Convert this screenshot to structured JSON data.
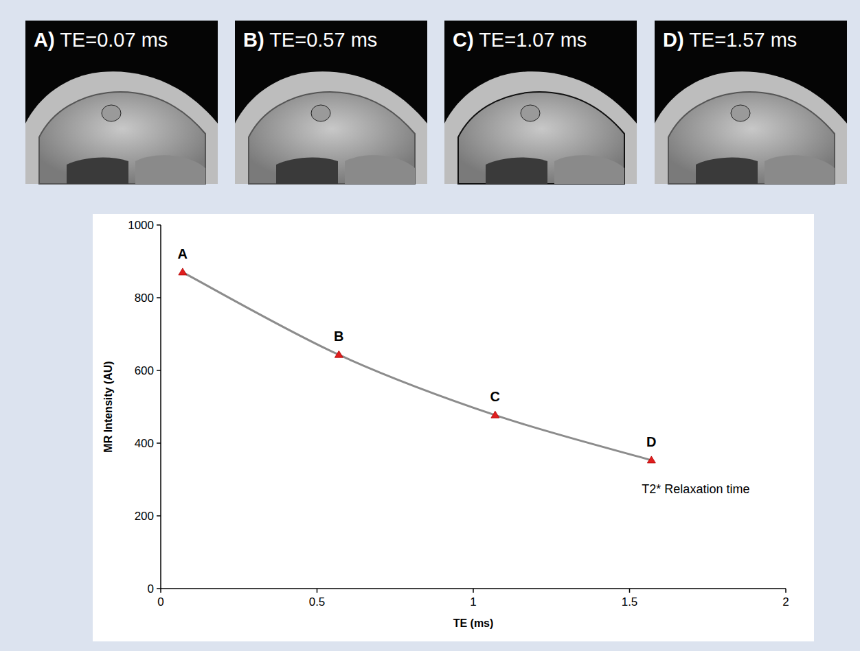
{
  "panels": [
    {
      "letter": "A)",
      "label": "TE=0.07 ms"
    },
    {
      "letter": "B)",
      "label": "TE=0.57 ms"
    },
    {
      "letter": "C)",
      "label": "TE=1.07 ms"
    },
    {
      "letter": "D)",
      "label": "TE=1.57 ms"
    }
  ],
  "chart_data": {
    "type": "line",
    "x_label": "TE (ms)",
    "y_label": "MR Intensity (AU)",
    "x": [
      0.07,
      0.57,
      1.07,
      1.57
    ],
    "series": [
      {
        "name": "T2* Relaxation time",
        "color": "#8c8c8c",
        "marker": "triangle",
        "values": [
          870,
          643,
          477,
          353
        ]
      }
    ],
    "point_labels": [
      "A",
      "B",
      "C",
      "D"
    ],
    "xlim": [
      0,
      2
    ],
    "xticks": [
      0,
      0.5,
      1,
      1.5,
      2
    ],
    "ylim": [
      0,
      1000
    ],
    "yticks": [
      0,
      200,
      400,
      600,
      800,
      1000
    ],
    "grid": false
  }
}
